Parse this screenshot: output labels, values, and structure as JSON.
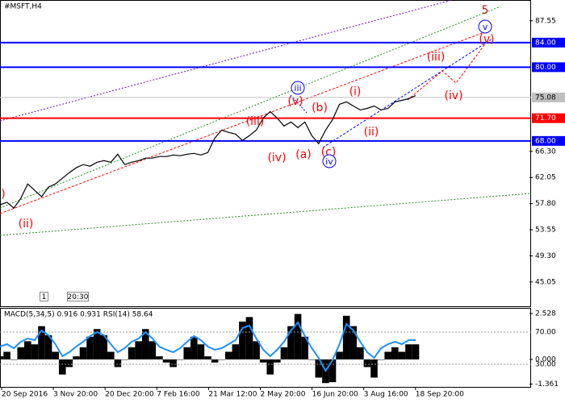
{
  "chart_data": {
    "type": "line",
    "title": "#MSFT,H4",
    "color": "#000000",
    "values": [
      57.62,
      58.01,
      57.09,
      58.66,
      61.01,
      59.97,
      58.92,
      60.49,
      61.01,
      61.93,
      62.84,
      63.63,
      64.15,
      63.89,
      64.54,
      64.8,
      64.54,
      65.85,
      64.15,
      64.54,
      64.8,
      65.2,
      65.2,
      65.46,
      65.46,
      65.72,
      65.59,
      65.85,
      65.98,
      65.72,
      66.11,
      68.47,
      69.77,
      69.38,
      69.12,
      68.07,
      68.86,
      69.77,
      71.73,
      72.78,
      71.73,
      70.43,
      71.08,
      70.16,
      71.08,
      68.86,
      67.55,
      69.77,
      71.47,
      73.96,
      74.35,
      73.69,
      73.04,
      73.3,
      73.69,
      73.04,
      73.3,
      74.35,
      74.61,
      74.87,
      75.39
    ],
    "ylim": [
      41.1,
      90.8
    ],
    "yticks": [
      87.55,
      62.05,
      53.55,
      45.05,
      {
        "value": 66.3,
        "label": "66.30"
      },
      {
        "value": 57.8,
        "label": "57.80"
      },
      {
        "value": 49.3,
        "label": "49.30"
      }
    ],
    "levels": [
      {
        "value": 84,
        "label": "84.00",
        "color": "#0000ff"
      },
      {
        "value": 80,
        "label": "80.00",
        "color": "#0000ff"
      },
      {
        "value": 75.08,
        "label": "75.08",
        "color": "#c0c0c0"
      },
      {
        "value": 71.7,
        "label": "71.70",
        "color": "#ff0000"
      },
      {
        "value": 68,
        "label": "68.00",
        "color": "#0000ff"
      }
    ],
    "x_labels": [
      "20 Sep 2016",
      "3 Nov 20:00",
      "20 Dec 20:00",
      "7 Feb 16:00",
      "21 Mar 12:00",
      "2 May 20:00",
      "16 Jun 20:00",
      "3 Aug 16:00",
      "18 Sep 20:00"
    ],
    "annotations": [
      {
        "text": "5",
        "color": "#b22222",
        "circled": false
      },
      {
        "text": "v",
        "color": "#0000ff",
        "circled": true
      },
      {
        "text": "(v)",
        "color": "#ff0000",
        "circled": false
      },
      {
        "text": "(iii)",
        "color": "#ff0000",
        "circled": false
      },
      {
        "text": "(iv)",
        "color": "#ff0000",
        "circled": false
      },
      {
        "text": "(i)",
        "color": "#ff0000",
        "circled": false
      },
      {
        "text": "(ii)",
        "color": "#ff0000",
        "circled": false
      },
      {
        "text": "iii",
        "color": "#0000ff",
        "circled": true
      },
      {
        "text": "(v)",
        "color": "#ff0000",
        "circled": false
      },
      {
        "text": "(b)",
        "color": "#ff0000",
        "circled": false
      },
      {
        "text": "(iii)",
        "color": "#ff0000",
        "circled": false
      },
      {
        "text": "(iv)",
        "color": "#ff0000",
        "circled": false
      },
      {
        "text": "(a)",
        "color": "#ff0000",
        "circled": false
      },
      {
        "text": "(c)",
        "color": "#ff0000",
        "circled": false
      },
      {
        "text": "iv",
        "color": "#0000ff",
        "circled": true
      },
      {
        "text": "(ii)",
        "color": "#ff0000",
        "circled": false
      },
      {
        "text": ")",
        "color": "#ff0000",
        "circled": false
      }
    ],
    "buttons": [
      "1",
      "20:30"
    ],
    "indicator": {
      "title": "MACD(5,34,5) 0.916 0.931 RSI(14) 58.64",
      "macd": {
        "color": "#000000",
        "ylim": [
          -1.51,
          2.79
        ],
        "yticks": [
          2.528,
          {
            "value": 0,
            "label": "0.000"
          },
          -1.361
        ],
        "values": [
          0.17,
          0.42,
          0,
          0.67,
          1.0,
          0.83,
          1.83,
          1.33,
          0.42,
          -0.83,
          -0.42,
          0.17,
          0.67,
          1.25,
          1.67,
          1.33,
          0.42,
          -0.42,
          0,
          0.67,
          1.0,
          1.67,
          1.0,
          0.17,
          -0.17,
          -0.42,
          0,
          0.67,
          1.25,
          0.83,
          0.17,
          -0.17,
          0,
          0.42,
          0.83,
          2.08,
          2.33,
          1.0,
          -0.17,
          -0.83,
          -0.17,
          0.67,
          1.83,
          2.5,
          1.25,
          0,
          -1.0,
          -1.3,
          -1.25,
          0.42,
          2.4,
          1.83,
          0.67,
          -0.42,
          -1.0,
          0,
          0.42,
          0.67,
          0.42,
          0.83,
          0.83
        ]
      },
      "rsi": {
        "color": "#1e90ff",
        "ylim": [
          2,
          99
        ],
        "yticks": [
          {
            "value": 70,
            "label": "70.00"
          },
          {
            "value": 30,
            "label": "30.00"
          }
        ],
        "values": [
          52,
          55,
          50,
          58,
          62,
          60,
          72,
          66,
          55,
          40,
          45,
          52,
          58,
          65,
          70,
          66,
          55,
          45,
          50,
          58,
          62,
          70,
          62,
          52,
          48,
          45,
          50,
          58,
          65,
          60,
          52,
          48,
          50,
          55,
          60,
          75,
          78,
          62,
          48,
          40,
          48,
          58,
          72,
          82,
          65,
          50,
          38,
          22,
          35,
          55,
          80,
          72,
          58,
          45,
          38,
          50,
          55,
          58,
          55,
          60,
          60
        ]
      }
    }
  }
}
